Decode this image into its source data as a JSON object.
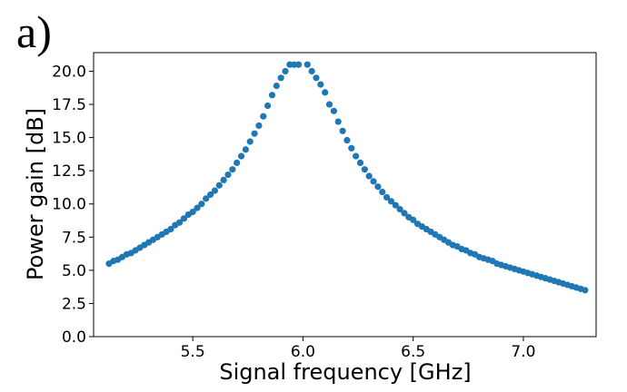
{
  "panel_label": "a)",
  "chart_data": {
    "type": "scatter",
    "title": "",
    "xlabel": "Signal frequency [GHz]",
    "ylabel": "Power gain [dB]",
    "xlim": [
      5.05,
      7.33
    ],
    "ylim": [
      0.0,
      21.4
    ],
    "xticks": [
      5.5,
      6.0,
      6.5,
      7.0
    ],
    "xtick_labels": [
      "5.5",
      "6.0",
      "6.5",
      "7.0"
    ],
    "yticks": [
      0.0,
      2.5,
      5.0,
      7.5,
      10.0,
      12.5,
      15.0,
      17.5,
      20.0
    ],
    "ytick_labels": [
      "0.0",
      "2.5",
      "5.0",
      "7.5",
      "10.0",
      "12.5",
      "15.0",
      "17.5",
      "20.0"
    ],
    "grid": false,
    "legend": "none",
    "marker_color": "#1f77b4",
    "series": [
      {
        "x": [
          5.12,
          5.14,
          5.16,
          5.18,
          5.2,
          5.22,
          5.24,
          5.26,
          5.28,
          5.3,
          5.32,
          5.34,
          5.36,
          5.38,
          5.4,
          5.42,
          5.44,
          5.46,
          5.48,
          5.5,
          5.52,
          5.54,
          5.56,
          5.58,
          5.6,
          5.62,
          5.64,
          5.66,
          5.68,
          5.7,
          5.72,
          5.74,
          5.76,
          5.78,
          5.8,
          5.82,
          5.84,
          5.86,
          5.88,
          5.9,
          5.92,
          5.94,
          5.96,
          5.98,
          6.02,
          6.04,
          6.06,
          6.08,
          6.1,
          6.12,
          6.14,
          6.16,
          6.18,
          6.2,
          6.22,
          6.24,
          6.26,
          6.28,
          6.3,
          6.32,
          6.34,
          6.36,
          6.38,
          6.4,
          6.42,
          6.44,
          6.46,
          6.48,
          6.5,
          6.52,
          6.54,
          6.56,
          6.58,
          6.6,
          6.62,
          6.64,
          6.66,
          6.68,
          6.7,
          6.72,
          6.74,
          6.76,
          6.78,
          6.8,
          6.82,
          6.84,
          6.86,
          6.88,
          6.9,
          6.92,
          6.94,
          6.96,
          6.98,
          7.0,
          7.02,
          7.04,
          7.06,
          7.08,
          7.1,
          7.12,
          7.14,
          7.16,
          7.18,
          7.2,
          7.22,
          7.24,
          7.26,
          7.28
        ],
        "y": [
          5.5,
          5.7,
          5.8,
          6.0,
          6.2,
          6.3,
          6.5,
          6.7,
          6.9,
          7.1,
          7.3,
          7.5,
          7.7,
          7.9,
          8.1,
          8.4,
          8.6,
          8.9,
          9.2,
          9.4,
          9.7,
          10.0,
          10.4,
          10.7,
          11.0,
          11.4,
          11.8,
          12.2,
          12.6,
          13.1,
          13.6,
          14.1,
          14.7,
          15.3,
          15.9,
          16.6,
          17.4,
          18.2,
          18.9,
          19.5,
          20.0,
          20.5,
          20.5,
          20.5,
          20.5,
          20.0,
          19.5,
          19.0,
          18.4,
          17.5,
          17.0,
          16.2,
          15.5,
          14.8,
          14.2,
          13.6,
          13.1,
          12.6,
          12.1,
          11.7,
          11.3,
          10.9,
          10.5,
          10.2,
          9.9,
          9.6,
          9.3,
          9.0,
          8.8,
          8.5,
          8.3,
          8.1,
          7.9,
          7.7,
          7.5,
          7.3,
          7.1,
          6.9,
          6.8,
          6.6,
          6.5,
          6.3,
          6.2,
          6.0,
          5.9,
          5.8,
          5.7,
          5.5,
          5.4,
          5.3,
          5.2,
          5.1,
          5.0,
          4.9,
          4.8,
          4.7,
          4.6,
          4.5,
          4.4,
          4.3,
          4.2,
          4.1,
          4.0,
          3.9,
          3.8,
          3.7,
          3.6,
          3.5
        ]
      }
    ]
  }
}
